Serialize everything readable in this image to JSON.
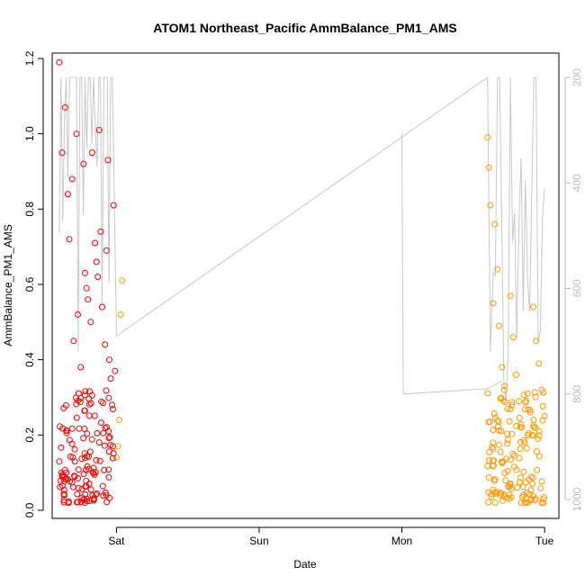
{
  "chart_data": {
    "type": "scatter",
    "title": "ATOM1 Northeast_Pacific AmmBalance_PM1_AMS",
    "xlabel": "Date",
    "ylabel": "AmmBalance_PM1_AMS",
    "x_ticks": [
      "Sat",
      "Sun",
      "Mon",
      "Tue"
    ],
    "y_ticks": [
      "0.0",
      "0.2",
      "0.4",
      "0.6",
      "0.8",
      "1.0",
      "1.2"
    ],
    "y2_ticks": [
      "200",
      "400",
      "600",
      "800",
      "1000"
    ],
    "xlim_days": [
      -0.45,
      3.1
    ],
    "ylim": [
      0,
      1.2
    ],
    "y2lim_reversed": [
      180,
      1020
    ],
    "grid": false,
    "colors": {
      "flight1": "#ff0000",
      "flight2": "#ff9900",
      "altitude_line": "#c8c8c8",
      "axis": "#000000",
      "right_axis": "#bdbdbd"
    },
    "series": [
      {
        "flight": "1",
        "color": "#ff0000",
        "x_days": [
          -0.4,
          -0.38,
          -0.36,
          -0.34,
          -0.33,
          -0.31,
          -0.3,
          -0.28,
          -0.27,
          -0.25,
          -0.23,
          -0.22,
          -0.21,
          -0.2,
          -0.18,
          -0.17,
          -0.15,
          -0.14,
          -0.13,
          -0.12,
          -0.11,
          -0.1,
          -0.08,
          -0.07,
          -0.06,
          -0.05,
          -0.04,
          -0.03,
          -0.02,
          -0.01
        ],
        "values": [
          1.19,
          0.95,
          1.07,
          0.84,
          0.72,
          0.88,
          0.45,
          1.0,
          0.52,
          0.38,
          0.92,
          0.63,
          0.59,
          0.56,
          0.5,
          0.95,
          0.71,
          0.66,
          0.62,
          1.01,
          0.74,
          0.54,
          0.44,
          0.69,
          0.93,
          0.4,
          0.35,
          0.28,
          0.81,
          0.37
        ]
      },
      {
        "flight": "2",
        "color": "#ff9900",
        "x_days": [
          0.0,
          0.01,
          0.02,
          0.03,
          0.04,
          2.6,
          2.61,
          2.62,
          2.64,
          2.65,
          2.67,
          2.68,
          2.7,
          2.72,
          2.74,
          2.76,
          2.78,
          2.8,
          2.82,
          2.84,
          2.86,
          2.88,
          2.9,
          2.92,
          2.94,
          2.96,
          2.98,
          3.0
        ],
        "values": [
          0.14,
          0.17,
          0.24,
          0.52,
          0.61,
          0.99,
          0.91,
          0.81,
          0.55,
          0.76,
          0.64,
          0.49,
          0.38,
          0.33,
          0.27,
          0.57,
          0.46,
          0.36,
          0.29,
          0.22,
          0.18,
          0.31,
          0.26,
          0.54,
          0.45,
          0.39,
          0.32,
          0.25
        ]
      }
    ]
  }
}
